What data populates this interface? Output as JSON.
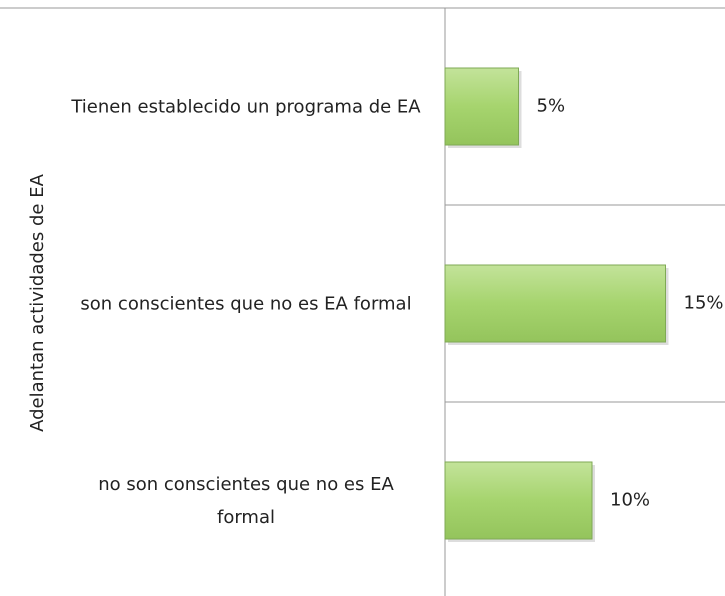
{
  "chart_data": {
    "type": "bar",
    "orientation": "horizontal",
    "y_label": "Adelantan actividades de EA",
    "categories": [
      "Tienen establecido un programa de EA",
      "son conscientes que no es EA formal",
      "no son conscientes que no es EA formal"
    ],
    "values": [
      5,
      15,
      10
    ],
    "value_labels": [
      "5%",
      "15%",
      "10%"
    ],
    "color": "#a6d46e",
    "xlim": [
      0,
      20
    ]
  }
}
